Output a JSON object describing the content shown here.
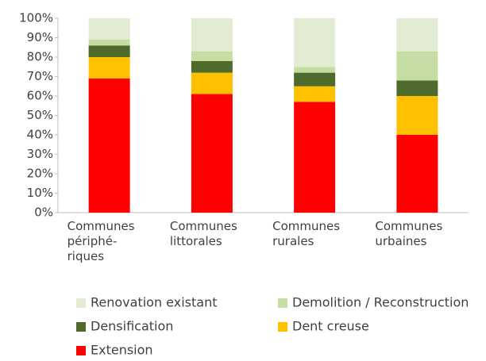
{
  "chart_data": {
    "type": "stacked_bar",
    "categories": [
      "Communes\npériphé-\nriques",
      "Communes\nlittorales",
      "Communes\nrurales",
      "Communes\nurbaines"
    ],
    "series": [
      {
        "name": "Extension",
        "color": "#ff0000",
        "values": [
          69,
          61,
          57,
          40
        ]
      },
      {
        "name": "Dent creuse",
        "color": "#ffc000",
        "values": [
          11,
          11,
          8,
          20
        ]
      },
      {
        "name": "Densification",
        "color": "#4e6b2b",
        "values": [
          6,
          6,
          7,
          8
        ]
      },
      {
        "name": "Demolition / Reconstruction",
        "color": "#c5dca3",
        "values": [
          3,
          5,
          3,
          15
        ]
      },
      {
        "name": "Renovation existant",
        "color": "#e2ecd3",
        "values": [
          11,
          17,
          25,
          17
        ]
      }
    ],
    "ylim": [
      0,
      100
    ],
    "yticks": [
      {
        "value": 0,
        "label": "0%"
      },
      {
        "value": 10,
        "label": "10%"
      },
      {
        "value": 20,
        "label": "20%"
      },
      {
        "value": 30,
        "label": "30%"
      },
      {
        "value": 40,
        "label": "40%"
      },
      {
        "value": 50,
        "label": "50%"
      },
      {
        "value": 60,
        "label": "60%"
      },
      {
        "value": 70,
        "label": "70%"
      },
      {
        "value": 80,
        "label": "80%"
      },
      {
        "value": 90,
        "label": "90%"
      },
      {
        "value": 100,
        "label": "100%"
      }
    ]
  }
}
